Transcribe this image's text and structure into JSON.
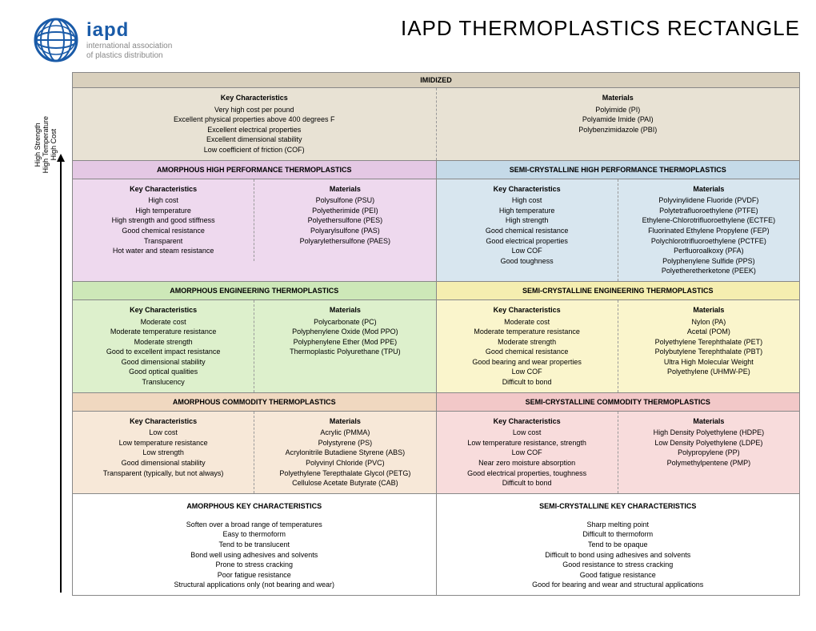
{
  "logo": {
    "main": "iapd",
    "sub1": "international association",
    "sub2": "of plastics distribution",
    "color": "#1a5ba8"
  },
  "title": "IAPD THERMOPLASTICS RECTANGLE",
  "vertical_labels": [
    "High Strength",
    "High Temperature",
    "High Cost"
  ],
  "colors": {
    "imidized_header": "#d9d0bd",
    "imidized_body": "#e8e2d4",
    "amorph_hp_header": "#e4c8e4",
    "amorph_hp_body": "#eed9ee",
    "semi_hp_header": "#c5dae8",
    "semi_hp_body": "#d8e6ef",
    "amorph_eng_header": "#cde8b8",
    "amorph_eng_body": "#ddf0cc",
    "semi_eng_header": "#f5eeb0",
    "semi_eng_body": "#faf5cc",
    "amorph_com_header": "#f0d8c0",
    "amorph_com_body": "#f7e8d8",
    "semi_com_header": "#f2c8c8",
    "semi_com_body": "#f8dcdc",
    "bottom": "#ffffff"
  },
  "imidized": {
    "header": "IMIDIZED",
    "char_title": "Key Characteristics",
    "chars": [
      "Very high cost per pound",
      "Excellent physical properties above 400 degrees F",
      "Excellent electrical properties",
      "Excellent dimensional stability",
      "Low coefficient of friction (COF)"
    ],
    "mat_title": "Materials",
    "mats": [
      "Polyimide (PI)",
      "Polyamide Imide (PAI)",
      "Polybenzimidazole (PBI)"
    ]
  },
  "hp": {
    "left_header": "AMORPHOUS HIGH PERFORMANCE THERMOPLASTICS",
    "right_header": "SEMI-CRYSTALLINE HIGH PERFORMANCE THERMOPLASTICS",
    "left_chars": [
      "High cost",
      "High temperature",
      "High strength and good stiffness",
      "Good chemical resistance",
      "Transparent",
      "Hot water and steam resistance"
    ],
    "left_mats": [
      "Polysulfone (PSU)",
      "Polyetherimide (PEI)",
      "Polyethersulfone (PES)",
      "Polyarylsulfone (PAS)",
      "Polyarylethersulfone (PAES)"
    ],
    "right_chars": [
      "High cost",
      "High temperature",
      "High strength",
      "Good chemical resistance",
      "Good electrical properties",
      "Low COF",
      "Good toughness"
    ],
    "right_mats": [
      "Polyvinylidene Fluoride (PVDF)",
      "Polytetrafluoroethylene (PTFE)",
      "Ethylene-Chlorotrifluoroethylene (ECTFE)",
      "Fluorinated Ethylene Propylene (FEP)",
      "Polychlorotrifluoroethylene (PCTFE)",
      "Perfluoroalkoxy (PFA)",
      "Polyphenylene Sulfide (PPS)",
      "Polyetheretherketone (PEEK)"
    ]
  },
  "eng": {
    "left_header": "AMORPHOUS ENGINEERING THERMOPLASTICS",
    "right_header": "SEMI-CRYSTALLINE ENGINEERING THERMOPLASTICS",
    "left_chars": [
      "Moderate cost",
      "Moderate temperature resistance",
      "Moderate strength",
      "Good to excellent impact resistance",
      "Good dimensional stability",
      "Good optical qualities",
      "Translucency"
    ],
    "left_mats": [
      "Polycarbonate (PC)",
      "Polyphenylene Oxide (Mod PPO)",
      "Polyphenylene Ether (Mod PPE)",
      "Thermoplastic Polyurethane (TPU)"
    ],
    "right_chars": [
      "Moderate cost",
      "Moderate temperature resistance",
      "Moderate strength",
      "Good chemical resistance",
      "Good bearing and wear properties",
      "Low COF",
      "Difficult to bond"
    ],
    "right_mats": [
      "Nylon (PA)",
      "Acetal (POM)",
      "Polyethylene Terephthalate (PET)",
      "Polybutylene Terephthalate (PBT)",
      "Ultra High Molecular Weight",
      "Polyethylene (UHMW-PE)"
    ]
  },
  "com": {
    "left_header": "AMORPHOUS COMMODITY THERMOPLASTICS",
    "right_header": "SEMI-CRYSTALLINE COMMODITY THERMOPLASTICS",
    "left_chars": [
      "Low cost",
      "Low temperature resistance",
      "Low strength",
      "Good dimensional stability",
      "Transparent (typically, but not always)"
    ],
    "left_mats": [
      "Acrylic (PMMA)",
      "Polystyrene (PS)",
      "Acrylonitrile Butadiene Styrene (ABS)",
      "Polyvinyl Chloride (PVC)",
      "Polyethylene Terepthalate Glycol (PETG)",
      "Cellulose Acetate Butyrate (CAB)"
    ],
    "right_chars": [
      "Low cost",
      "Low temperature resistance, strength",
      "Low COF",
      "Near zero moisture absorption",
      "Good electrical properties, toughness",
      "Difficult to bond"
    ],
    "right_mats": [
      "High Density Polyethylene (HDPE)",
      "Low Density Polyethylene (LDPE)",
      "Polypropylene (PP)",
      "Polymethylpentene (PMP)"
    ]
  },
  "bottom": {
    "left_header": "AMORPHOUS KEY CHARACTERISTICS",
    "right_header": "SEMI-CRYSTALLINE KEY CHARACTERISTICS",
    "left": [
      "Soften over a broad range of temperatures",
      "Easy to thermoform",
      "Tend to be translucent",
      "Bond well using adhesives and solvents",
      "Prone to stress cracking",
      "Poor fatigue resistance",
      "Structural applications only (not bearing and wear)"
    ],
    "right": [
      "Sharp melting point",
      "Difficult to thermoform",
      "Tend to be opaque",
      "Difficult to bond using adhesives and solvents",
      "Good resistance to stress cracking",
      "Good fatigue resistance",
      "Good for bearing and wear and structural applications"
    ]
  },
  "labels": {
    "chars": "Key Characteristics",
    "mats": "Materials"
  }
}
